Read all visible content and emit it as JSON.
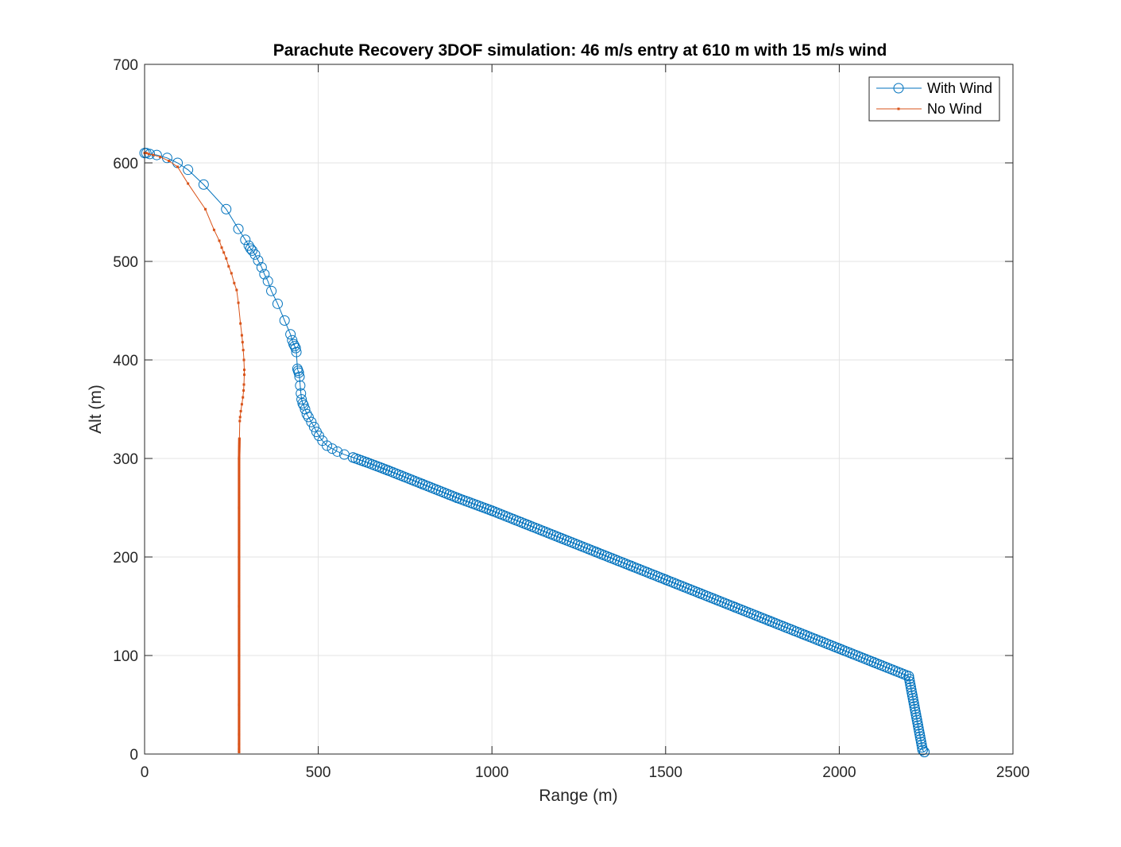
{
  "chart_data": {
    "type": "line",
    "title": "Parachute Recovery 3DOF simulation: 46 m/s entry at 610 m with 15 m/s wind",
    "xlabel": "Range (m)",
    "ylabel": "Alt (m)",
    "xlim": [
      0,
      2500
    ],
    "ylim": [
      0,
      700
    ],
    "xticks": [
      0,
      500,
      1000,
      1500,
      2000,
      2500
    ],
    "yticks": [
      0,
      100,
      200,
      300,
      400,
      500,
      600,
      700
    ],
    "xtick_labels": [
      "0",
      "500",
      "1000",
      "1500",
      "2000",
      "2500"
    ],
    "ytick_labels": [
      "0",
      "100",
      "200",
      "300",
      "400",
      "500",
      "600",
      "700"
    ],
    "grid": true,
    "legend_position": "top-right",
    "series": [
      {
        "name": "With Wind",
        "color": "#0072BD",
        "marker": "circle",
        "x": [
          0,
          5,
          15,
          35,
          65,
          95,
          125,
          170,
          235,
          270,
          290,
          300,
          305,
          310,
          318,
          327,
          337,
          345,
          355,
          365,
          383,
          403,
          420,
          425,
          429,
          432,
          435,
          437,
          440,
          442,
          444,
          446,
          448,
          450,
          452,
          455,
          458,
          462,
          467,
          472,
          480,
          488,
          495,
          502,
          512,
          525,
          540,
          555,
          575,
          600,
          640,
          700,
          800,
          900,
          1000,
          1100,
          1200,
          1300,
          1400,
          1500,
          1600,
          1700,
          1800,
          1900,
          2000,
          2100,
          2200,
          2240,
          2245
        ],
        "y": [
          610,
          610,
          609,
          608,
          605,
          600,
          593,
          578,
          553,
          533,
          522,
          516,
          513,
          511,
          507,
          501,
          494,
          487,
          480,
          470,
          457,
          440,
          426,
          420,
          416,
          414,
          412,
          408,
          391,
          389,
          387,
          383,
          374,
          366,
          360,
          356,
          354,
          350,
          345,
          342,
          337,
          332,
          327,
          323,
          318,
          313,
          310,
          307,
          304,
          301,
          296,
          288,
          274,
          260,
          247,
          233,
          219,
          205,
          191,
          177,
          163,
          149,
          135,
          121,
          107,
          93,
          79,
          4,
          2
        ]
      },
      {
        "name": "No Wind",
        "color": "#D95319",
        "marker": "point",
        "x": [
          0,
          5,
          12,
          25,
          45,
          70,
          95,
          125,
          175,
          200,
          215,
          222,
          228,
          235,
          242,
          250,
          258,
          265,
          270,
          276,
          280,
          282,
          284,
          286,
          287,
          287,
          286,
          285,
          283,
          280,
          277,
          275,
          274,
          273,
          272,
          272,
          272,
          272,
          272,
          272,
          272,
          272,
          272,
          272
        ],
        "y": [
          610,
          610,
          609,
          608,
          606,
          602,
          596,
          579,
          553,
          532,
          521,
          514,
          509,
          503,
          495,
          488,
          478,
          471,
          458,
          437,
          425,
          418,
          410,
          400,
          390,
          385,
          375,
          369,
          362,
          355,
          348,
          342,
          338,
          320,
          300,
          250,
          200,
          150,
          100,
          50,
          20,
          10,
          5,
          2
        ]
      }
    ]
  }
}
